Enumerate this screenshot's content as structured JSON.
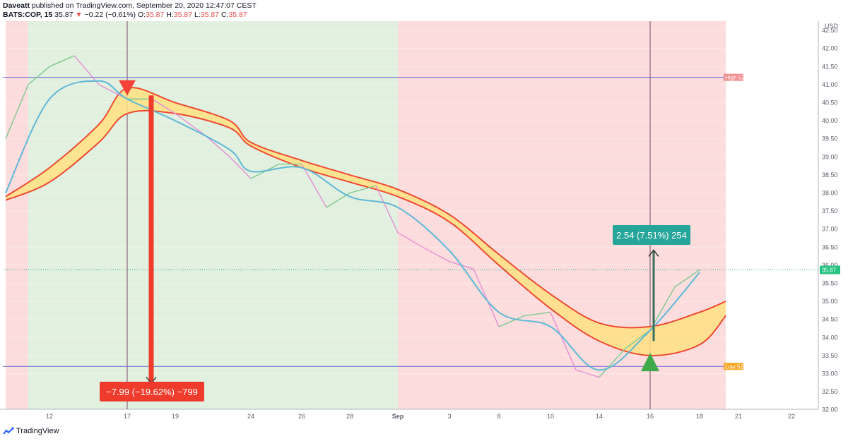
{
  "header": {
    "author": "Daveatt",
    "published": "published on TradingView.com, September 20, 2020 12:47:07 CEST",
    "symbol": "BATS:COP, 15",
    "last": "35.87",
    "arrow": "▼",
    "change": "−0.22 (−0.61%)",
    "o_label": "O:",
    "o_val": "35.87",
    "h_label": "H:",
    "h_val": "35.87",
    "l_label": "L:",
    "l_val": "35.87",
    "c_label": "C:",
    "c_val": "35.87"
  },
  "footer": {
    "brand": "TradingView"
  },
  "colors": {
    "up": "#26a69a",
    "down": "#ef5350",
    "ema": "#5fb8d6",
    "band_line": "#ef4b34",
    "band_fill": "#ffe082",
    "bg_red": "#fcdada",
    "bg_green": "#e0efdd",
    "level_line": "#6b6bd6",
    "measure_down": "#ef3b2c",
    "measure_up": "#26a69a"
  },
  "chart_data": {
    "type": "line",
    "instrument": "BATS:COP",
    "interval": "15",
    "currency": "USD",
    "ylim": [
      32.0,
      42.5
    ],
    "y_ticks": [
      "42.50",
      "42.00",
      "41.50",
      "41.00",
      "40.50",
      "40.00",
      "39.50",
      "39.00",
      "38.50",
      "38.00",
      "37.50",
      "37.00",
      "36.50",
      "36.00",
      "35.50",
      "35.00",
      "34.50",
      "34.00",
      "33.50",
      "33.00",
      "32.50",
      "32.00"
    ],
    "x_ticks": [
      "12",
      "17",
      "19",
      "24",
      "26",
      "28",
      "Sep",
      "3",
      "8",
      "10",
      "14",
      "16",
      "18",
      "21",
      "22"
    ],
    "series": [
      {
        "role": "price",
        "x": [
          "Aug 10",
          "Aug 11",
          "Aug 12",
          "Aug 13",
          "Aug 14",
          "Aug 17",
          "Aug 18",
          "Aug 19",
          "Aug 20",
          "Aug 21",
          "Aug 24",
          "Aug 25",
          "Aug 26",
          "Aug 27",
          "Aug 28",
          "Aug 31",
          "Sep 1",
          "Sep 2",
          "Sep 3",
          "Sep 4",
          "Sep 8",
          "Sep 9",
          "Sep 10",
          "Sep 11",
          "Sep 14",
          "Sep 15",
          "Sep 16",
          "Sep 17",
          "Sep 18"
        ],
        "values": [
          39.5,
          41.0,
          41.5,
          41.8,
          41.0,
          40.6,
          40.6,
          40.2,
          39.6,
          39.0,
          38.4,
          38.8,
          38.8,
          37.6,
          38.0,
          38.2,
          36.9,
          36.5,
          36.1,
          35.9,
          34.3,
          34.6,
          34.7,
          33.1,
          32.9,
          33.7,
          34.2,
          35.4,
          35.87
        ]
      },
      {
        "role": "ema",
        "x": [
          "Aug 10",
          "Aug 12",
          "Aug 14",
          "Aug 17",
          "Aug 19",
          "Aug 21",
          "Aug 24",
          "Aug 26",
          "Aug 28",
          "Sep 1",
          "Sep 3",
          "Sep 8",
          "Sep 10",
          "Sep 14",
          "Sep 16",
          "Sep 18"
        ],
        "values": [
          38.0,
          40.6,
          41.1,
          40.6,
          40.0,
          39.2,
          38.6,
          38.7,
          37.9,
          37.6,
          36.4,
          34.7,
          34.3,
          33.1,
          34.2,
          35.8
        ]
      },
      {
        "role": "band_upper",
        "x": [
          "Aug 10",
          "Aug 12",
          "Aug 14",
          "Aug 17",
          "Aug 19",
          "Aug 21",
          "Aug 24",
          "Aug 26",
          "Aug 28",
          "Sep 1",
          "Sep 3",
          "Sep 8",
          "Sep 10",
          "Sep 14",
          "Sep 16",
          "Sep 18",
          "Sep 20"
        ],
        "values": [
          37.9,
          38.7,
          39.9,
          40.9,
          40.5,
          40.0,
          39.4,
          38.9,
          38.5,
          38.1,
          37.4,
          36.3,
          35.2,
          34.4,
          34.3,
          34.7,
          35.0
        ]
      },
      {
        "role": "band_lower",
        "x": [
          "Aug 10",
          "Aug 12",
          "Aug 14",
          "Aug 17",
          "Aug 19",
          "Aug 21",
          "Aug 24",
          "Aug 26",
          "Aug 28",
          "Sep 1",
          "Sep 3",
          "Sep 8",
          "Sep 10",
          "Sep 14",
          "Sep 16",
          "Sep 18",
          "Sep 20"
        ],
        "values": [
          37.8,
          38.3,
          39.4,
          40.2,
          40.2,
          39.8,
          39.3,
          38.7,
          38.3,
          37.9,
          37.2,
          36.0,
          34.8,
          33.9,
          33.5,
          33.8,
          34.6
        ]
      }
    ],
    "levels": [
      {
        "label": "High 52",
        "value": 41.2
      },
      {
        "label": "Low 52",
        "value": 33.2
      }
    ],
    "background_zones": [
      {
        "from": "Aug 10",
        "to": "Aug 11",
        "color": "red"
      },
      {
        "from": "Aug 11",
        "to": "Sep 1",
        "color": "green"
      },
      {
        "from": "Sep 1",
        "to": "Sep 20",
        "color": "red"
      }
    ],
    "signals": [
      {
        "type": "sell",
        "x": "Aug 17",
        "value": 40.85
      },
      {
        "type": "buy",
        "x": "Sep 16",
        "value": 33.3
      }
    ],
    "measurements": [
      {
        "text": "−7.99 (−19.62%) −799",
        "from": 40.7,
        "to": 32.75,
        "direction": "down"
      },
      {
        "text": "2.54 (7.51%) 254",
        "from": 33.9,
        "to": 36.4,
        "direction": "up"
      }
    ],
    "last_price_label": "35.87"
  }
}
